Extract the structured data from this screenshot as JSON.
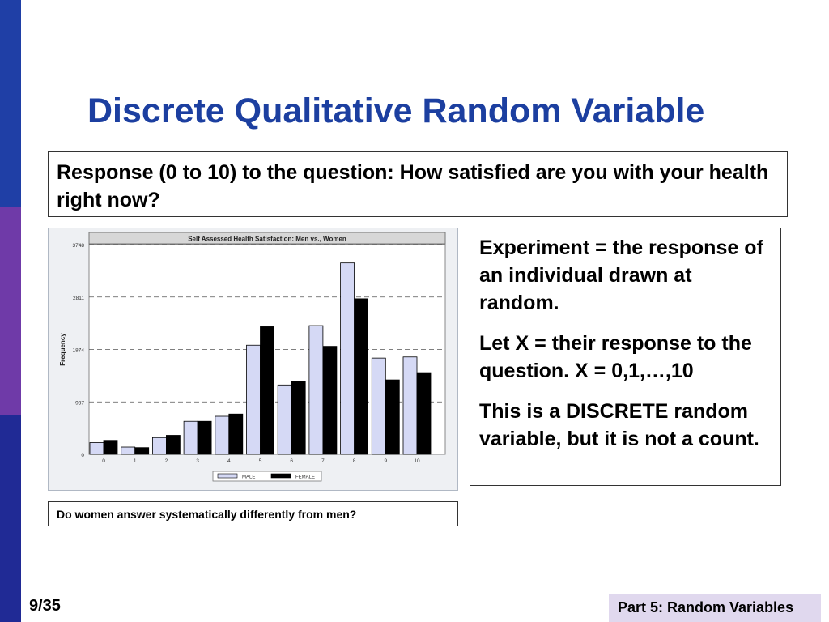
{
  "slide": {
    "title": "Discrete Qualitative Random Variable",
    "question": "Response (0 to 10) to the question: How satisfied are you with your health right now?",
    "side_text": [
      "Experiment = the response of an individual drawn at random.",
      "Let X = their response to the question.  X = 0,1,…,10",
      "This is a DISCRETE random variable, but it is not a count."
    ],
    "note": "Do women answer systematically differently from men?",
    "page_number": "9/35",
    "footer": "Part 5: Random Variables"
  },
  "colors": {
    "title": "#1c3fa0",
    "male_bar": "#d5d9f5",
    "female_bar": "#000000",
    "left_bar_top": "#1f3fa6",
    "left_bar_mid": "#6f3aa8",
    "left_bar_bottom": "#202a95",
    "footer_bg": "#e0d8ee"
  },
  "chart_data": {
    "type": "bar",
    "title": "Self Assessed Health Satisfaction: Men vs., Women",
    "ylabel": "Frequency",
    "xlabel": "",
    "categories": [
      "0",
      "1",
      "2",
      "3",
      "4",
      "5",
      "6",
      "7",
      "8",
      "9",
      "10"
    ],
    "yticks": [
      0,
      937,
      1874,
      2811,
      3748
    ],
    "ylim": [
      0,
      3748
    ],
    "grid": "dashed horizontal",
    "legend": "bottom-center",
    "series": [
      {
        "name": "MALE",
        "values": [
          210,
          130,
          300,
          590,
          680,
          1950,
          1240,
          2300,
          3420,
          1720,
          1740
        ]
      },
      {
        "name": "FEMALE",
        "values": [
          250,
          120,
          340,
          590,
          720,
          2280,
          1300,
          1930,
          2780,
          1330,
          1460
        ]
      }
    ]
  }
}
